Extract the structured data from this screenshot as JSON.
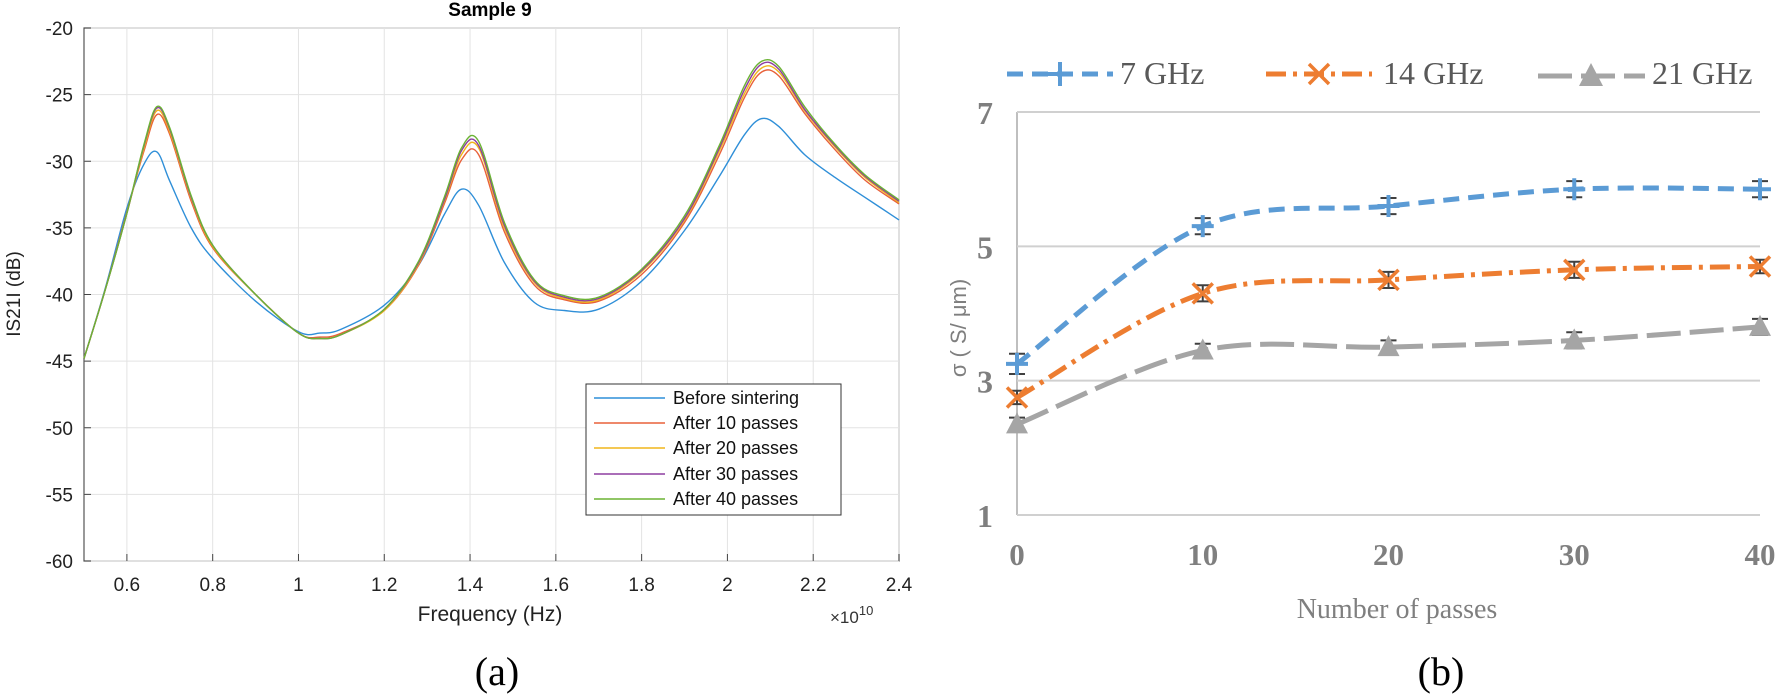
{
  "chart_data": [
    {
      "type": "line",
      "title": "Sample 9",
      "xlabel": "Frequency (Hz)",
      "ylabel": "IS21I (dB)",
      "x_multiplier_label": "×10",
      "x_multiplier_exponent": "10",
      "xlim": [
        0.5,
        2.4
      ],
      "ylim": [
        -60,
        -20
      ],
      "x_ticks": [
        "0.6",
        "0.8",
        "1",
        "1.2",
        "1.4",
        "1.6",
        "1.8",
        "2",
        "2.2",
        "2.4"
      ],
      "x_tick_values": [
        0.6,
        0.8,
        1.0,
        1.2,
        1.4,
        1.6,
        1.8,
        2.0,
        2.2,
        2.4
      ],
      "y_ticks": [
        "-20",
        "-25",
        "-30",
        "-35",
        "-40",
        "-45",
        "-50",
        "-55",
        "-60"
      ],
      "y_tick_values": [
        -20,
        -25,
        -30,
        -35,
        -40,
        -45,
        -50,
        -55,
        -60
      ],
      "grid": true,
      "legend_position": "bottom-right",
      "panel_label": "(a)",
      "x": [
        0.5,
        0.55,
        0.6,
        0.64,
        0.67,
        0.7,
        0.75,
        0.8,
        0.9,
        1.0,
        1.05,
        1.1,
        1.2,
        1.28,
        1.34,
        1.38,
        1.42,
        1.48,
        1.55,
        1.62,
        1.7,
        1.8,
        1.9,
        1.98,
        2.04,
        2.08,
        2.12,
        2.18,
        2.25,
        2.32,
        2.4
      ],
      "series": [
        {
          "name": "Before sintering",
          "color": "#2f8fd8",
          "values": [
            -44.8,
            -39.5,
            -33.5,
            -30.2,
            -29.3,
            -31.5,
            -35.0,
            -37.3,
            -40.5,
            -42.8,
            -42.9,
            -42.6,
            -40.8,
            -37.8,
            -34.0,
            -32.1,
            -33.3,
            -37.6,
            -40.6,
            -41.2,
            -41.1,
            -39.0,
            -35.2,
            -31.2,
            -28.0,
            -26.8,
            -27.4,
            -29.5,
            -31.2,
            -32.7,
            -34.4
          ]
        },
        {
          "name": "After 10 passes",
          "color": "#e8613a",
          "values": [
            -44.8,
            -39.6,
            -33.8,
            -29.2,
            -26.5,
            -28.0,
            -33.0,
            -36.5,
            -40.0,
            -42.9,
            -43.2,
            -42.9,
            -41.2,
            -37.8,
            -33.2,
            -29.9,
            -29.5,
            -35.3,
            -39.3,
            -40.4,
            -40.5,
            -38.5,
            -34.6,
            -29.6,
            -25.2,
            -23.3,
            -23.6,
            -26.4,
            -29.1,
            -31.4,
            -33.2
          ]
        },
        {
          "name": "After 20 passes",
          "color": "#f0b51c",
          "values": [
            -44.8,
            -39.6,
            -33.9,
            -29.0,
            -26.2,
            -27.8,
            -32.8,
            -36.4,
            -40.0,
            -42.9,
            -43.3,
            -43.0,
            -41.2,
            -37.7,
            -33.0,
            -29.5,
            -29.0,
            -35.0,
            -39.1,
            -40.3,
            -40.4,
            -38.3,
            -34.4,
            -29.3,
            -24.9,
            -23.0,
            -23.3,
            -26.2,
            -28.9,
            -31.2,
            -33.1
          ]
        },
        {
          "name": "After 30 passes",
          "color": "#8d3ea0",
          "values": [
            -44.8,
            -39.6,
            -33.9,
            -28.8,
            -26.0,
            -27.6,
            -32.7,
            -36.3,
            -40.0,
            -42.9,
            -43.3,
            -43.0,
            -41.1,
            -37.6,
            -32.9,
            -29.2,
            -28.8,
            -34.8,
            -39.0,
            -40.2,
            -40.3,
            -38.2,
            -34.3,
            -29.1,
            -24.6,
            -22.7,
            -23.1,
            -26.1,
            -28.8,
            -31.1,
            -33.0
          ]
        },
        {
          "name": "After 40 passes",
          "color": "#6bb334",
          "values": [
            -44.8,
            -39.6,
            -33.9,
            -28.7,
            -25.9,
            -27.5,
            -32.6,
            -36.3,
            -40.0,
            -42.9,
            -43.3,
            -43.0,
            -41.1,
            -37.5,
            -32.7,
            -29.0,
            -28.5,
            -34.6,
            -38.9,
            -40.1,
            -40.2,
            -38.1,
            -34.1,
            -28.9,
            -24.3,
            -22.5,
            -22.9,
            -25.9,
            -28.7,
            -31.0,
            -32.9
          ]
        }
      ]
    },
    {
      "type": "line",
      "title": "",
      "xlabel": "Number of passes",
      "ylabel": "σ ( S/ μm)",
      "xlim": [
        0,
        40
      ],
      "ylim": [
        1,
        7
      ],
      "x_ticks": [
        "0",
        "10",
        "20",
        "30",
        "40"
      ],
      "x_tick_values": [
        0,
        10,
        20,
        30,
        40
      ],
      "y_ticks": [
        "1",
        "3",
        "5",
        "7"
      ],
      "y_tick_values": [
        1,
        3,
        5,
        7
      ],
      "grid": true,
      "legend_position": "top",
      "panel_label": "(b)",
      "x": [
        0,
        10,
        20,
        30,
        40
      ],
      "series": [
        {
          "name": "7 GHz",
          "color": "#5b9bd5",
          "marker": "plus",
          "dash": "dashed",
          "values": [
            3.25,
            5.3,
            5.6,
            5.85,
            5.85
          ],
          "error": [
            0.15,
            0.12,
            0.12,
            0.12,
            0.12
          ]
        },
        {
          "name": "14 GHz",
          "color": "#ed7d31",
          "marker": "x",
          "dash": "dashdot",
          "values": [
            2.75,
            4.3,
            4.5,
            4.65,
            4.7
          ],
          "error": [
            0.1,
            0.12,
            0.12,
            0.12,
            0.1
          ]
        },
        {
          "name": "21 GHz",
          "color": "#a5a5a5",
          "marker": "triangle",
          "dash": "longdash",
          "values": [
            2.35,
            3.45,
            3.5,
            3.6,
            3.8
          ],
          "error": [
            0.1,
            0.1,
            0.1,
            0.12,
            0.12
          ]
        }
      ]
    }
  ]
}
